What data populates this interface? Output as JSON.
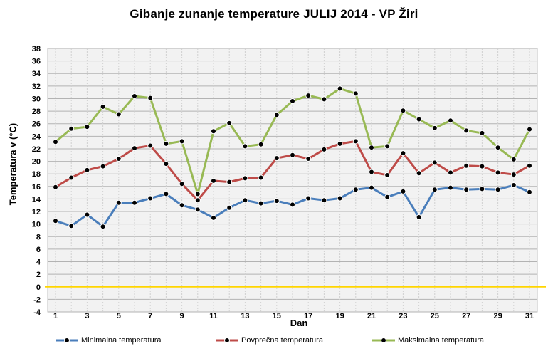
{
  "chart_data": {
    "type": "line",
    "title": "Gibanje  zunanje  temperature  JULIJ 2014 - VP Žiri",
    "xlabel": "Dan",
    "ylabel": "Temperatura v (°C)",
    "ylim": [
      -4,
      38
    ],
    "y_ticks": [
      38,
      36,
      34,
      32,
      30,
      28,
      26,
      24,
      22,
      20,
      18,
      16,
      14,
      12,
      10,
      8,
      6,
      4,
      2,
      0,
      -2,
      -4
    ],
    "x_ticks": [
      "1",
      "3",
      "5",
      "7",
      "9",
      "11",
      "13",
      "15",
      "17",
      "19",
      "21",
      "23",
      "25",
      "27",
      "29",
      "31"
    ],
    "grid": true,
    "legend_position": "bottom",
    "x": [
      1,
      2,
      3,
      4,
      5,
      6,
      7,
      8,
      9,
      10,
      11,
      12,
      13,
      14,
      15,
      16,
      17,
      18,
      19,
      20,
      21,
      22,
      23,
      24,
      25,
      26,
      27,
      28,
      29,
      30,
      31
    ],
    "series": [
      {
        "name": "Minimalna temperatura",
        "color": "#4a7ebb",
        "values": [
          10.5,
          9.7,
          11.5,
          9.6,
          13.4,
          13.4,
          14.1,
          14.8,
          13.0,
          12.3,
          11.0,
          12.6,
          13.8,
          13.3,
          13.7,
          13.1,
          14.1,
          13.8,
          14.1,
          15.5,
          15.8,
          14.3,
          15.2,
          11.1,
          15.5,
          15.8,
          15.5,
          15.6,
          15.5,
          16.2,
          15.1
        ]
      },
      {
        "name": "Povprečna temperatura",
        "color": "#be4b48",
        "values": [
          15.9,
          17.4,
          18.6,
          19.2,
          20.4,
          22.1,
          22.5,
          19.6,
          16.4,
          13.8,
          16.9,
          16.7,
          17.3,
          17.4,
          20.5,
          21.0,
          20.4,
          21.9,
          22.8,
          23.2,
          18.3,
          17.8,
          21.3,
          18.1,
          19.8,
          18.2,
          19.3,
          19.2,
          18.2,
          17.9,
          19.3
        ]
      },
      {
        "name": "Maksimalna temperatura",
        "color": "#98b954",
        "values": [
          23.1,
          25.2,
          25.5,
          28.7,
          27.5,
          30.4,
          30.1,
          22.8,
          23.2,
          14.8,
          24.8,
          26.1,
          22.4,
          22.7,
          27.4,
          29.6,
          30.5,
          29.9,
          31.6,
          30.8,
          22.2,
          22.4,
          28.1,
          26.7,
          25.3,
          26.5,
          24.9,
          24.5,
          22.2,
          20.3,
          25.1
        ]
      }
    ]
  }
}
